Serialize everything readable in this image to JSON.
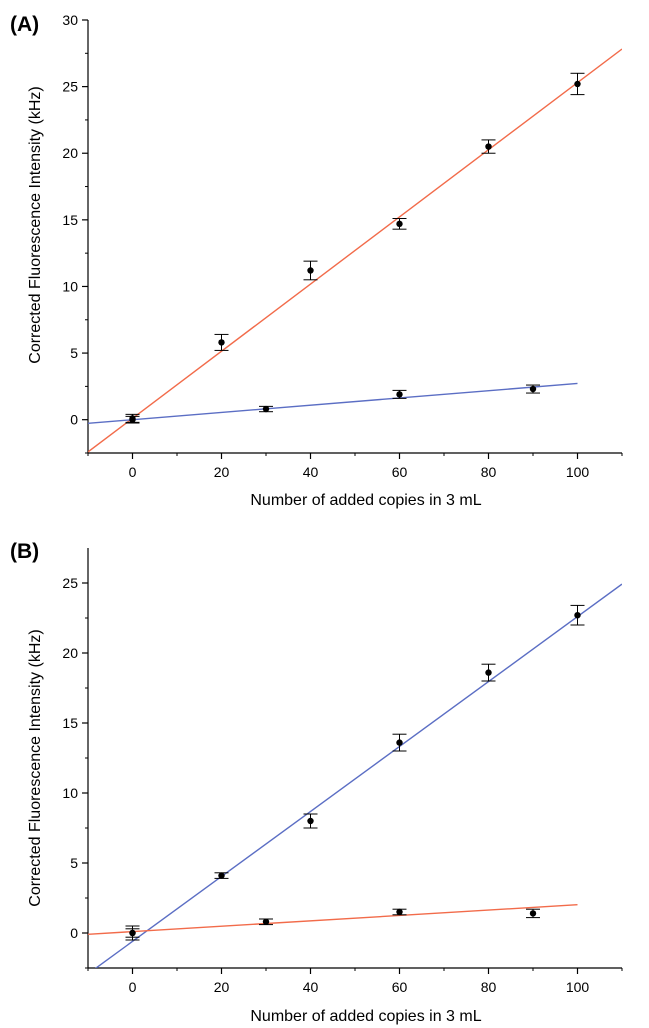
{
  "chart_data": [
    {
      "type": "scatter",
      "panel_label": "(A)",
      "xlabel": "Number of added copies in 3 mL",
      "ylabel": "Corrected Fluorescence Intensity (kHz)",
      "xlim": [
        -10,
        110
      ],
      "ylim": [
        -2.5,
        30
      ],
      "xticks": [
        0,
        20,
        40,
        60,
        80,
        100
      ],
      "yticks": [
        0,
        5,
        10,
        15,
        20,
        25,
        30
      ],
      "series": [
        {
          "color": "#f26b4a",
          "points": [
            {
              "x": 0,
              "y": 0.1,
              "err": 0.3
            },
            {
              "x": 20,
              "y": 5.8,
              "err": 0.6
            },
            {
              "x": 40,
              "y": 11.2,
              "err": 0.7
            },
            {
              "x": 60,
              "y": 14.7,
              "err": 0.4
            },
            {
              "x": 80,
              "y": 20.5,
              "err": 0.5
            },
            {
              "x": 100,
              "y": 25.2,
              "err": 0.8
            }
          ],
          "fit": {
            "slope": 0.252,
            "intercept": 0.1,
            "x_range": [
              -10,
              110
            ]
          }
        },
        {
          "color": "#5b6ec4",
          "points": [
            {
              "x": 0,
              "y": 0.0,
              "err": 0.25
            },
            {
              "x": 30,
              "y": 0.8,
              "err": 0.2
            },
            {
              "x": 60,
              "y": 1.9,
              "err": 0.3
            },
            {
              "x": 90,
              "y": 2.3,
              "err": 0.3
            }
          ],
          "fit": {
            "slope": 0.0272,
            "intercept": 0.0,
            "x_range": [
              -10,
              100
            ]
          }
        }
      ]
    },
    {
      "type": "scatter",
      "panel_label": "(B)",
      "xlabel": "Number of added copies in 3 mL",
      "ylabel": "Corrected Fluorescence Intensity (kHz)",
      "xlim": [
        -10,
        110
      ],
      "ylim": [
        -2.5,
        27.5
      ],
      "xticks": [
        0,
        20,
        40,
        60,
        80,
        100
      ],
      "yticks": [
        0,
        5,
        10,
        15,
        20,
        25
      ],
      "series": [
        {
          "color": "#5b6ec4",
          "points": [
            {
              "x": 0,
              "y": 0.0,
              "err": 0.5
            },
            {
              "x": 20,
              "y": 4.1,
              "err": 0.2
            },
            {
              "x": 40,
              "y": 8.0,
              "err": 0.5
            },
            {
              "x": 60,
              "y": 13.6,
              "err": 0.6
            },
            {
              "x": 80,
              "y": 18.6,
              "err": 0.6
            },
            {
              "x": 100,
              "y": 22.7,
              "err": 0.7
            }
          ],
          "fit": {
            "slope": 0.232,
            "intercept": -0.6,
            "x_range": [
              -10,
              110
            ]
          }
        },
        {
          "color": "#f26b4a",
          "points": [
            {
              "x": 0,
              "y": 0.0,
              "err": 0.3
            },
            {
              "x": 30,
              "y": 0.8,
              "err": 0.2
            },
            {
              "x": 60,
              "y": 1.5,
              "err": 0.2
            },
            {
              "x": 90,
              "y": 1.4,
              "err": 0.3
            }
          ],
          "fit": {
            "slope": 0.0192,
            "intercept": 0.1,
            "x_range": [
              -10,
              100
            ]
          }
        }
      ]
    }
  ]
}
